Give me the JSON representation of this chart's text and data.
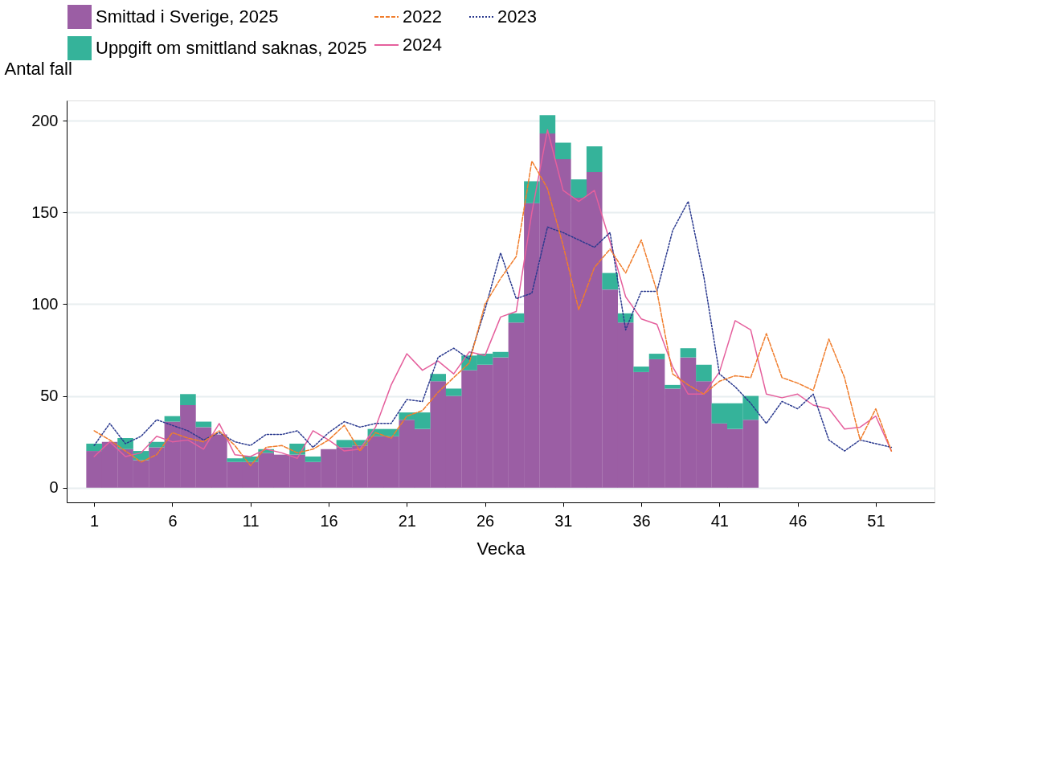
{
  "chart_data": {
    "type": "bar",
    "xlabel": "Vecka",
    "ylabel": "Antal fall",
    "stacked": true,
    "legend": "top",
    "grid": "y",
    "xlim": [
      -0.5,
      54.5
    ],
    "xticks": [
      1,
      6,
      11,
      16,
      21,
      26,
      31,
      36,
      41,
      46,
      51
    ],
    "ylim": [
      -8,
      211
    ],
    "yticks": [
      0,
      50,
      100,
      150,
      200
    ],
    "series": [
      {
        "name": "Smittad i Sverige, 2025",
        "color": "#9b5ea4",
        "x": [
          1,
          2,
          3,
          4,
          5,
          6,
          7,
          8,
          9,
          10,
          11,
          12,
          13,
          14,
          15,
          16,
          17,
          18,
          19,
          20,
          21,
          22,
          23,
          24,
          25,
          26,
          27,
          28,
          29,
          30,
          31,
          32,
          33,
          34,
          35,
          36,
          37,
          38,
          39,
          40,
          41,
          42,
          43
        ],
        "values": [
          20,
          25,
          21,
          15,
          22,
          36,
          45,
          33,
          29,
          14,
          14,
          19,
          18,
          18,
          14,
          21,
          22,
          23,
          28,
          28,
          37,
          32,
          58,
          50,
          64,
          67,
          71,
          90,
          155,
          193,
          179,
          158,
          172,
          108,
          90,
          63,
          70,
          54,
          71,
          58,
          35,
          32,
          37
        ]
      },
      {
        "name": "Uppgift om smittland saknas, 2025",
        "color": "#35b39a",
        "x": [
          1,
          2,
          3,
          4,
          5,
          6,
          7,
          8,
          9,
          10,
          11,
          12,
          13,
          14,
          15,
          16,
          17,
          18,
          19,
          20,
          21,
          22,
          23,
          24,
          25,
          26,
          27,
          28,
          29,
          30,
          31,
          32,
          33,
          34,
          35,
          36,
          37,
          38,
          39,
          40,
          41,
          42,
          43
        ],
        "values": [
          4,
          0,
          6,
          5,
          3,
          3,
          6,
          3,
          0,
          2,
          3,
          2,
          0,
          6,
          3,
          0,
          4,
          3,
          4,
          4,
          4,
          9,
          4,
          4,
          8,
          6,
          3,
          5,
          12,
          10,
          9,
          10,
          14,
          9,
          5,
          3,
          3,
          2,
          5,
          9,
          11,
          14,
          13
        ]
      },
      {
        "name": "2022",
        "type": "line",
        "line_style": "dashed",
        "color": "#f07d2c",
        "x": [
          1,
          2,
          3,
          4,
          5,
          6,
          7,
          8,
          9,
          10,
          11,
          12,
          13,
          14,
          15,
          16,
          17,
          18,
          19,
          20,
          21,
          22,
          23,
          24,
          25,
          26,
          27,
          28,
          29,
          30,
          31,
          32,
          33,
          34,
          35,
          36,
          37,
          38,
          39,
          40,
          41,
          42,
          43,
          44,
          45,
          46,
          47,
          48,
          49,
          50,
          51,
          52
        ],
        "values": [
          31,
          26,
          20,
          14,
          18,
          30,
          27,
          25,
          31,
          23,
          12,
          22,
          23,
          19,
          21,
          26,
          34,
          20,
          30,
          27,
          39,
          42,
          52,
          60,
          68,
          100,
          114,
          126,
          178,
          163,
          132,
          97,
          120,
          130,
          117,
          135,
          107,
          62,
          56,
          51,
          58,
          61,
          60,
          84,
          60,
          57,
          53,
          81,
          60,
          26,
          43,
          20
        ]
      },
      {
        "name": "2023",
        "type": "line",
        "line_style": "dotted",
        "color": "#2b3a8f",
        "x": [
          1,
          2,
          3,
          4,
          5,
          6,
          7,
          8,
          9,
          10,
          11,
          12,
          13,
          14,
          15,
          16,
          17,
          18,
          19,
          20,
          21,
          22,
          23,
          24,
          25,
          26,
          27,
          28,
          29,
          30,
          31,
          32,
          33,
          34,
          35,
          36,
          37,
          38,
          39,
          40,
          41,
          42,
          43,
          44,
          45,
          46,
          47,
          48,
          49,
          50,
          51,
          52
        ],
        "values": [
          23,
          35,
          24,
          28,
          37,
          34,
          31,
          26,
          30,
          25,
          23,
          29,
          29,
          31,
          22,
          30,
          36,
          33,
          35,
          35,
          48,
          47,
          71,
          76,
          70,
          97,
          128,
          103,
          106,
          142,
          139,
          135,
          131,
          139,
          86,
          107,
          107,
          140,
          156,
          115,
          62,
          55,
          46,
          35,
          47,
          43,
          51,
          26,
          20,
          26,
          24,
          22
        ]
      },
      {
        "name": "2024",
        "type": "line",
        "line_style": "solid",
        "color": "#e5609d",
        "x": [
          1,
          2,
          3,
          4,
          5,
          6,
          7,
          8,
          9,
          10,
          11,
          12,
          13,
          14,
          15,
          16,
          17,
          18,
          19,
          20,
          21,
          22,
          23,
          24,
          25,
          26,
          27,
          28,
          29,
          30,
          31,
          32,
          33,
          34,
          35,
          36,
          37,
          38,
          39,
          40,
          41,
          42,
          43,
          44,
          45,
          46,
          47,
          48,
          49,
          50,
          51,
          52
        ],
        "values": [
          17,
          25,
          17,
          19,
          28,
          25,
          26,
          21,
          35,
          18,
          17,
          21,
          19,
          16,
          31,
          26,
          20,
          21,
          33,
          56,
          73,
          64,
          69,
          62,
          74,
          72,
          93,
          96,
          150,
          195,
          162,
          156,
          162,
          134,
          104,
          92,
          89,
          66,
          51,
          51,
          63,
          91,
          86,
          51,
          49,
          51,
          45,
          43,
          32,
          33,
          39,
          20
        ]
      }
    ]
  }
}
